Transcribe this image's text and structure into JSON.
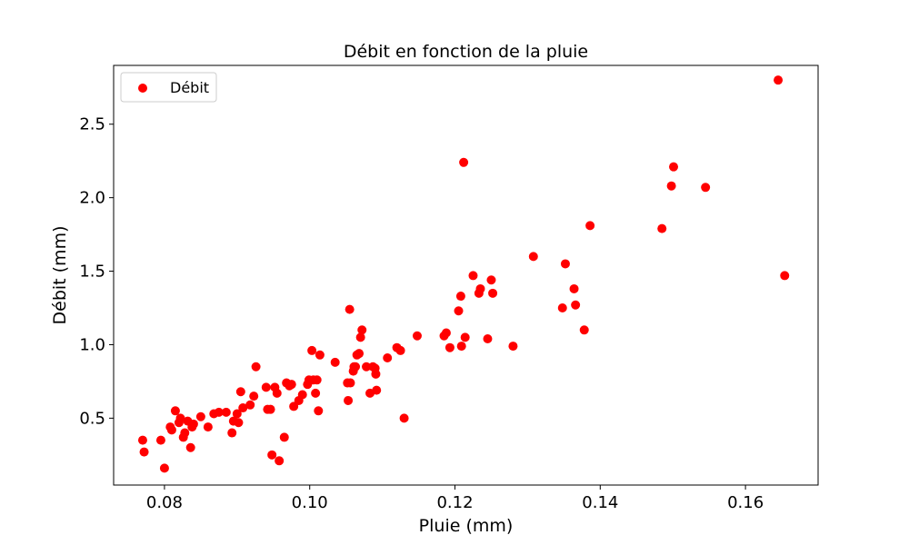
{
  "colors": {
    "marker": "#ff0000",
    "axis": "#000000",
    "background": "#ffffff",
    "legend_border": "#cccccc"
  },
  "chart_data": {
    "type": "scatter",
    "title": "Débit en fonction de la pluie",
    "xlabel": "Pluie (mm)",
    "ylabel": "Débit (mm)",
    "xlim": [
      0.073,
      0.17
    ],
    "ylim": [
      0.045,
      2.9
    ],
    "xticks": [
      0.08,
      0.1,
      0.12,
      0.14,
      0.16
    ],
    "xtick_labels": [
      "0.08",
      "0.10",
      "0.12",
      "0.14",
      "0.16"
    ],
    "yticks": [
      0.5,
      1.0,
      1.5,
      2.0,
      2.5
    ],
    "ytick_labels": [
      "0.5",
      "1.0",
      "1.5",
      "2.0",
      "2.5"
    ],
    "grid": false,
    "legend_position": "upper-left",
    "series": [
      {
        "name": "Débit",
        "color": "#ff0000",
        "x": [
          0.077,
          0.0772,
          0.0795,
          0.08,
          0.0808,
          0.081,
          0.0815,
          0.082,
          0.0822,
          0.0826,
          0.0828,
          0.0832,
          0.0836,
          0.0838,
          0.084,
          0.085,
          0.086,
          0.0868,
          0.0875,
          0.0885,
          0.0893,
          0.0895,
          0.09,
          0.0902,
          0.0905,
          0.0908,
          0.0918,
          0.0923,
          0.0926,
          0.094,
          0.0942,
          0.0946,
          0.0948,
          0.0952,
          0.0955,
          0.0958,
          0.0965,
          0.0968,
          0.0972,
          0.0975,
          0.0978,
          0.0985,
          0.099,
          0.0997,
          0.0999,
          0.1003,
          0.1005,
          0.1008,
          0.101,
          0.1012,
          0.1014,
          0.1035,
          0.1052,
          0.1053,
          0.1055,
          0.1056,
          0.106,
          0.1061,
          0.1063,
          0.1065,
          0.1068,
          0.107,
          0.1072,
          0.1078,
          0.1083,
          0.1087,
          0.109,
          0.1091,
          0.1092,
          0.1107,
          0.112,
          0.1125,
          0.113,
          0.1148,
          0.1185,
          0.1188,
          0.1193,
          0.1205,
          0.1208,
          0.1209,
          0.1212,
          0.1214,
          0.1225,
          0.1233,
          0.1235,
          0.1245,
          0.125,
          0.1252,
          0.128,
          0.1308,
          0.1348,
          0.1352,
          0.1364,
          0.1366,
          0.1378,
          0.1386,
          0.1485,
          0.1498,
          0.1501,
          0.1545,
          0.1645,
          0.1654
        ],
        "y": [
          0.35,
          0.27,
          0.35,
          0.16,
          0.44,
          0.42,
          0.55,
          0.47,
          0.5,
          0.37,
          0.4,
          0.48,
          0.3,
          0.44,
          0.46,
          0.51,
          0.44,
          0.53,
          0.54,
          0.54,
          0.4,
          0.48,
          0.53,
          0.47,
          0.68,
          0.57,
          0.59,
          0.65,
          0.85,
          0.71,
          0.56,
          0.56,
          0.25,
          0.71,
          0.67,
          0.21,
          0.37,
          0.74,
          0.72,
          0.73,
          0.58,
          0.62,
          0.66,
          0.73,
          0.76,
          0.96,
          0.76,
          0.67,
          0.76,
          0.55,
          0.93,
          0.88,
          0.74,
          0.62,
          1.24,
          0.74,
          0.82,
          0.85,
          0.85,
          0.93,
          0.94,
          1.05,
          1.1,
          0.85,
          0.67,
          0.85,
          0.84,
          0.8,
          0.69,
          0.91,
          0.98,
          0.96,
          0.5,
          1.06,
          1.06,
          1.08,
          0.98,
          1.23,
          1.33,
          0.99,
          2.24,
          1.05,
          1.47,
          1.35,
          1.38,
          1.04,
          1.44,
          1.35,
          0.99,
          1.6,
          1.25,
          1.55,
          1.38,
          1.27,
          1.1,
          1.81,
          1.79,
          2.08,
          2.21,
          2.07,
          2.8,
          1.47
        ]
      }
    ]
  }
}
